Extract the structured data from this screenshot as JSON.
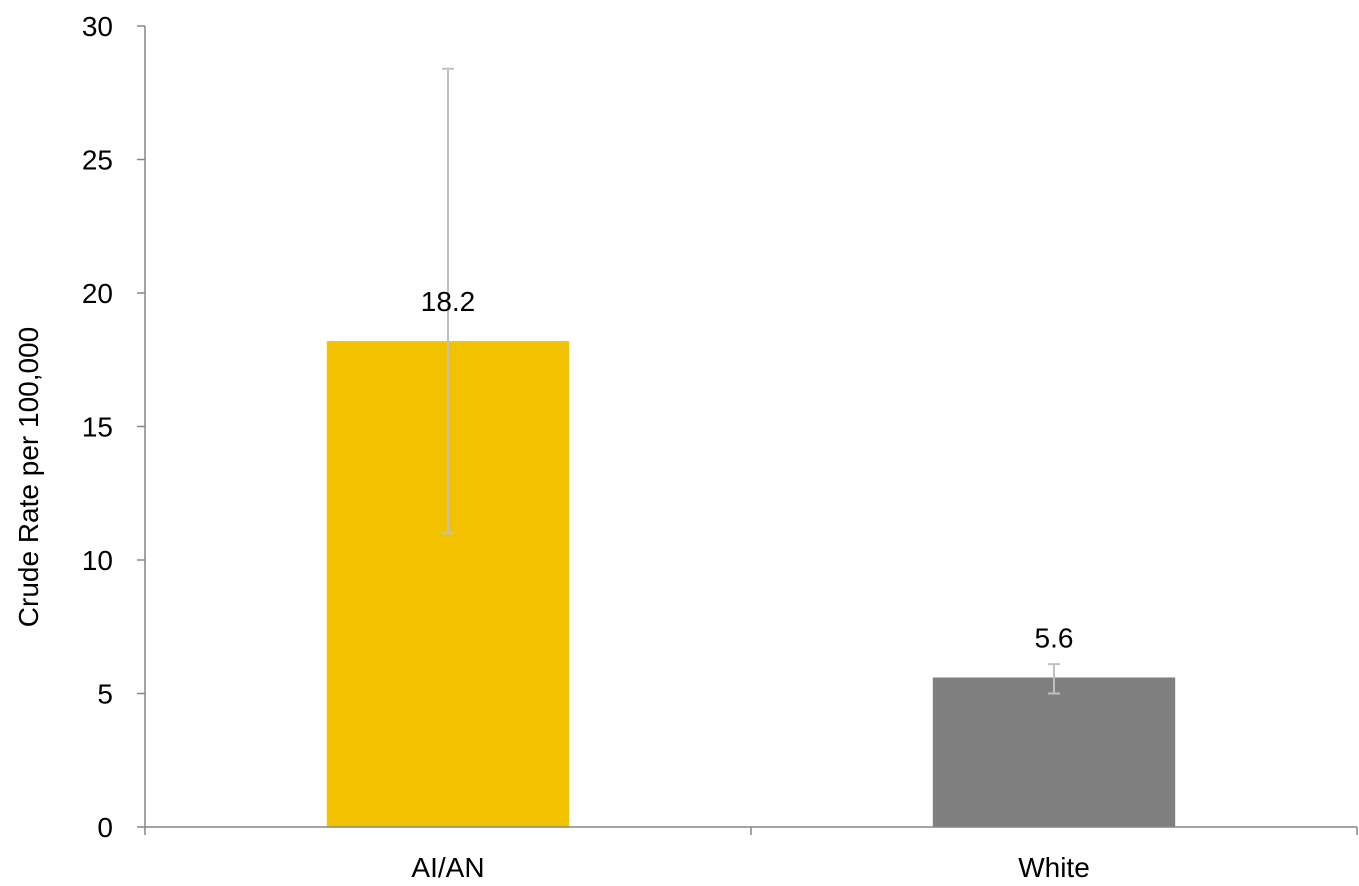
{
  "chart_data": {
    "type": "bar",
    "title": "",
    "xlabel": "",
    "ylabel": "Crude Rate per 100,000",
    "ylim": [
      0,
      30
    ],
    "yticks": [
      0,
      5,
      10,
      15,
      20,
      25,
      30
    ],
    "grid": false,
    "categories": [
      "AI/AN",
      "White"
    ],
    "values": [
      18.2,
      5.6
    ],
    "value_labels": [
      "18.2",
      "5.6"
    ],
    "error_bars": [
      {
        "low": 11.0,
        "high": 28.4
      },
      {
        "low": 5.0,
        "high": 6.1
      }
    ],
    "colors": [
      "#F2C200",
      "#7F7F7F"
    ],
    "error_bar_color": "#C0C0C0",
    "axis_color": "#868686"
  }
}
